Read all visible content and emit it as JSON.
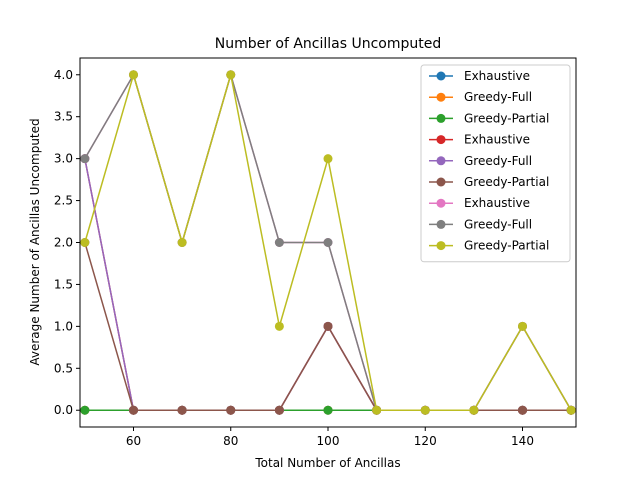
{
  "chart_data": {
    "type": "line",
    "title": "Number of Ancillas Uncomputed",
    "xlabel": "Total Number of Ancillas",
    "ylabel": "Average Number of Ancillas Uncomputed",
    "xlim": [
      49,
      151
    ],
    "ylim": [
      -0.2,
      4.2
    ],
    "xticks": [
      60,
      80,
      100,
      120,
      140
    ],
    "yticks": [
      0.0,
      0.5,
      1.0,
      1.5,
      2.0,
      2.5,
      3.0,
      3.5,
      4.0
    ],
    "legend_position": "upper-right",
    "x": [
      50,
      60,
      70,
      80,
      90,
      100,
      110,
      120,
      130,
      140,
      150
    ],
    "series": [
      {
        "name": "Exhaustive",
        "color": "#1f77b4",
        "values": [
          0,
          0,
          0,
          0,
          0,
          0,
          0,
          0,
          0,
          0,
          0
        ]
      },
      {
        "name": "Greedy-Full",
        "color": "#ff7f0e",
        "values": [
          0,
          0,
          0,
          0,
          0,
          0,
          0,
          0,
          0,
          0,
          0
        ]
      },
      {
        "name": "Greedy-Partial",
        "color": "#2ca02c",
        "values": [
          0,
          0,
          0,
          0,
          0,
          0,
          0,
          0,
          0,
          0,
          0
        ]
      },
      {
        "name": "Exhaustive",
        "color": "#d62728",
        "values": [
          3,
          0,
          0,
          0,
          0,
          1,
          0,
          0,
          0,
          0,
          0
        ]
      },
      {
        "name": "Greedy-Full",
        "color": "#9467bd",
        "values": [
          3,
          0,
          0,
          0,
          0,
          1,
          0,
          0,
          0,
          0,
          0
        ]
      },
      {
        "name": "Greedy-Partial",
        "color": "#8c564b",
        "values": [
          2,
          0,
          0,
          0,
          0,
          1,
          0,
          0,
          0,
          0,
          0
        ]
      },
      {
        "name": "Exhaustive",
        "color": "#e377c2",
        "values": [
          3,
          4,
          2,
          4,
          2,
          2,
          0,
          0,
          0,
          1,
          0
        ]
      },
      {
        "name": "Greedy-Full",
        "color": "#7f7f7f",
        "values": [
          3,
          4,
          2,
          4,
          2,
          2,
          0,
          0,
          0,
          1,
          0
        ]
      },
      {
        "name": "Greedy-Partial",
        "color": "#bcbd22",
        "values": [
          2,
          4,
          2,
          4,
          1,
          3,
          0,
          0,
          0,
          1,
          0
        ]
      }
    ]
  }
}
